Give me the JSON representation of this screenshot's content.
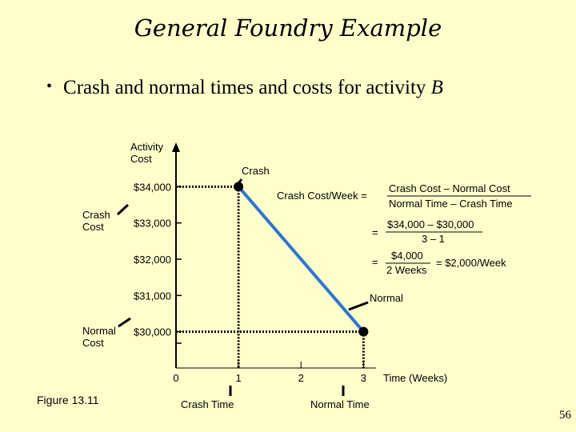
{
  "slide": {
    "title": "General Foundry Example",
    "bullet_marker": "•",
    "bullet_text": "Crash and normal times and costs for activity",
    "bullet_var": "B",
    "figure_label": "Figure 13.11",
    "page_number": "56"
  },
  "chart_data": {
    "type": "line",
    "ylabel": "Activity Cost",
    "xlabel": "Time (Weeks)",
    "x_ticks": [
      0,
      1,
      2,
      3
    ],
    "x_tick_labels": [
      "0",
      "1",
      "2",
      "3"
    ],
    "y_ticks": [
      30000,
      31000,
      32000,
      33000,
      34000
    ],
    "y_tick_labels": [
      "$30,000",
      "$31,000",
      "$32,000",
      "$33,000",
      "$34,000"
    ],
    "xlim": [
      0,
      3.2
    ],
    "ylim": [
      29000,
      35000
    ],
    "line_color": "#2e75d2",
    "series": [
      {
        "x": [
          1,
          3
        ],
        "y": [
          34000,
          30000
        ]
      }
    ],
    "points": [
      {
        "label": "Crash",
        "x": 1,
        "y": 34000
      },
      {
        "label": "Normal",
        "x": 3,
        "y": 30000
      }
    ],
    "side_labels": {
      "crash_cost": [
        "Crash",
        "Cost"
      ],
      "normal_cost": [
        "Normal",
        "Cost"
      ]
    },
    "time_labels": {
      "crash_time": "Crash Time",
      "normal_time": "Normal Time"
    },
    "formula": {
      "lhs": "Crash Cost/Week =",
      "frac1_num": "Crash Cost – Normal Cost",
      "frac1_den": "Normal Time – Crash Time",
      "frac2_num": "$34,000 – $30,000",
      "frac2_den": "3 – 1",
      "frac3_num": "$4,000",
      "frac3_den": "2 Weeks",
      "result": "= $2,000/Week",
      "equals": "="
    }
  }
}
